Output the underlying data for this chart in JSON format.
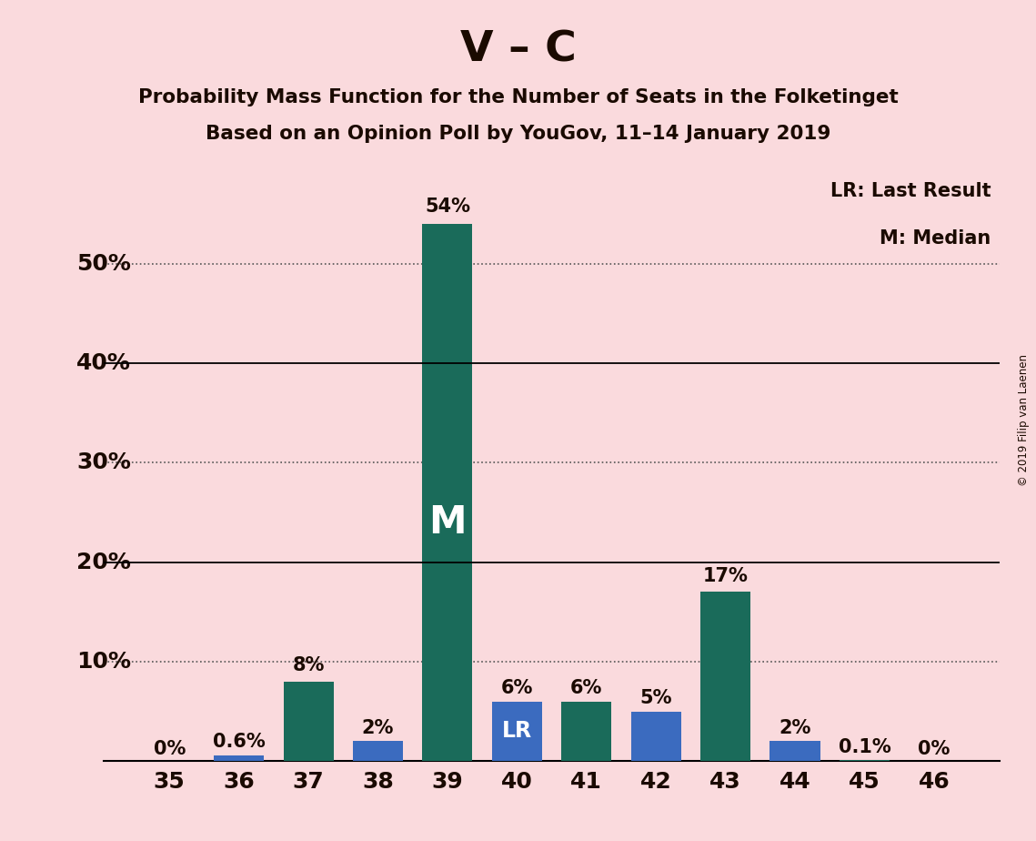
{
  "title_main": "V – C",
  "subtitle1": "Probability Mass Function for the Number of Seats in the Folketinget",
  "subtitle2": "Based on an Opinion Poll by YouGov, 11–14 January 2019",
  "copyright_text": "© 2019 Filip van Laenen",
  "categories": [
    35,
    36,
    37,
    38,
    39,
    40,
    41,
    42,
    43,
    44,
    45,
    46
  ],
  "values": [
    0.0,
    0.6,
    8.0,
    2.0,
    54.0,
    6.0,
    6.0,
    5.0,
    17.0,
    2.0,
    0.1,
    0.0
  ],
  "bar_colors": [
    "#1a6b5a",
    "#3b6bbf",
    "#1a6b5a",
    "#3b6bbf",
    "#1a6b5a",
    "#3b6bbf",
    "#1a6b5a",
    "#3b6bbf",
    "#1a6b5a",
    "#3b6bbf",
    "#1a6b5a",
    "#1a6b5a"
  ],
  "median_bar": 39,
  "lr_bar": 40,
  "label_format": [
    "0%",
    "0.6%",
    "8%",
    "2%",
    "54%",
    "6%",
    "6%",
    "5%",
    "17%",
    "2%",
    "0.1%",
    "0%"
  ],
  "ylim": [
    0,
    60
  ],
  "background_color": "#fadadd",
  "teal_color": "#1a6b5a",
  "blue_color": "#3b6bbf",
  "text_color": "#1a0a00",
  "legend_lr": "LR: Last Result",
  "legend_m": "M: Median",
  "annotation_m": "M",
  "annotation_lr": "LR",
  "solid_lines": [
    20,
    40
  ],
  "dotted_lines": [
    10,
    30,
    50
  ],
  "solid_labels": [
    "20%",
    "40%"
  ],
  "dotted_labels": [
    "10%",
    "30%",
    "50%"
  ]
}
